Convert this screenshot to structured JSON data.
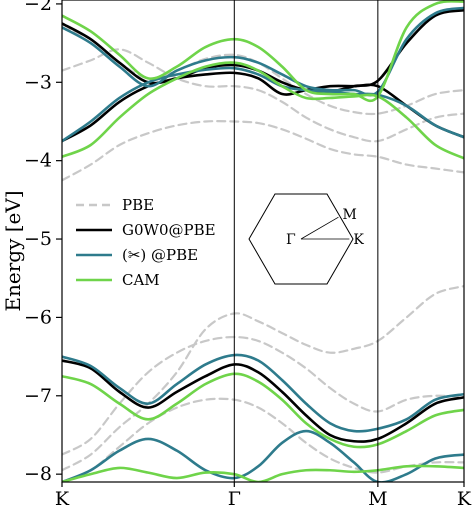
{
  "chart_data": {
    "type": "line",
    "ylabel": "Energy [eV]",
    "ylim": [
      -8.1,
      -1.95
    ],
    "yticks": [
      -2,
      -3,
      -4,
      -5,
      -6,
      -7,
      -8
    ],
    "ytick_labels": [
      "−2",
      "−3",
      "−4",
      "−5",
      "−6",
      "−7",
      "−8"
    ],
    "xlim": [
      0,
      1
    ],
    "kpoints": [
      {
        "label": "K",
        "x": 0
      },
      {
        "label": "Γ",
        "x": 0.4286
      },
      {
        "label": "M",
        "x": 0.7857
      },
      {
        "label": "K",
        "x": 1
      }
    ],
    "legend": {
      "position": "middle-left",
      "entries": [
        {
          "label": "PBE",
          "color": "#c8c8c8",
          "dashed": true
        },
        {
          "label": "G0W0@PBE",
          "color": "#000000",
          "dashed": false
        },
        {
          "label": "(✂) @PBE",
          "color": "#2e7b8c",
          "dashed": false
        },
        {
          "label": "CAM",
          "color": "#6fd44a",
          "dashed": false
        }
      ]
    },
    "inset": {
      "labels": {
        "gamma": "Γ",
        "m": "M",
        "k": "K"
      }
    },
    "x": [
      0,
      0.0714,
      0.1429,
      0.2143,
      0.2857,
      0.3571,
      0.4286,
      0.4881,
      0.5476,
      0.6071,
      0.6667,
      0.7262,
      0.7857,
      0.8571,
      0.9286,
      1
    ],
    "series": [
      {
        "legend": "PBE",
        "color": "#c8c8c8",
        "dashed": true,
        "values": [
          -2.85,
          -2.72,
          -2.58,
          -2.75,
          -2.95,
          -3.05,
          -3.05,
          -3.1,
          -3.25,
          -3.45,
          -3.6,
          -3.7,
          -3.75,
          -3.6,
          -3.45,
          -3.4
        ]
      },
      {
        "legend": "PBE",
        "color": "#c8c8c8",
        "dashed": true,
        "values": [
          -4.25,
          -4.05,
          -3.8,
          -3.65,
          -3.55,
          -3.5,
          -3.5,
          -3.52,
          -3.6,
          -3.72,
          -3.85,
          -3.92,
          -3.95,
          -4.05,
          -4.1,
          -4.15
        ]
      },
      {
        "legend": "PBE",
        "color": "#c8c8c8",
        "dashed": true,
        "values": [
          -2.3,
          -2.45,
          -2.75,
          -2.95,
          -2.85,
          -2.7,
          -2.65,
          -2.75,
          -2.95,
          -3.15,
          -3.3,
          -3.38,
          -3.4,
          -3.3,
          -3.15,
          -3.1
        ]
      },
      {
        "legend": "PBE",
        "color": "#c8c8c8",
        "dashed": true,
        "values": [
          -7.75,
          -7.55,
          -7.1,
          -6.7,
          -6.45,
          -6.3,
          -6.25,
          -6.3,
          -6.45,
          -6.65,
          -6.9,
          -7.1,
          -7.2,
          -7.05,
          -7.0,
          -7.02
        ]
      },
      {
        "legend": "PBE",
        "color": "#c8c8c8",
        "dashed": true,
        "values": [
          -7.95,
          -7.75,
          -7.4,
          -7.1,
          -6.7,
          -6.15,
          -5.95,
          -6.05,
          -6.2,
          -6.35,
          -6.45,
          -6.4,
          -6.3,
          -6.0,
          -5.7,
          -5.6
        ]
      },
      {
        "legend": "PBE",
        "color": "#c8c8c8",
        "dashed": true,
        "values": [
          -8.1,
          -7.95,
          -7.65,
          -7.35,
          -7.15,
          -7.05,
          -7.05,
          -7.15,
          -7.35,
          -7.6,
          -7.8,
          -7.92,
          -7.98,
          -7.9,
          -7.85,
          -7.85
        ]
      },
      {
        "legend": "G0W0@PBE",
        "color": "#000000",
        "dashed": false,
        "values": [
          -2.25,
          -2.45,
          -2.75,
          -3.0,
          -2.95,
          -2.82,
          -2.78,
          -2.85,
          -3.0,
          -3.1,
          -3.12,
          -3.05,
          -2.98,
          -2.5,
          -2.15,
          -2.08
        ]
      },
      {
        "legend": "G0W0@PBE",
        "color": "#000000",
        "dashed": false,
        "values": [
          -3.75,
          -3.55,
          -3.25,
          -3.05,
          -2.95,
          -2.9,
          -2.88,
          -2.95,
          -3.15,
          -3.1,
          -3.05,
          -3.05,
          -3.05,
          -3.3,
          -3.55,
          -3.7
        ]
      },
      {
        "legend": "G0W0@PBE",
        "color": "#000000",
        "dashed": false,
        "values": [
          -6.55,
          -6.65,
          -6.95,
          -7.15,
          -6.95,
          -6.75,
          -6.6,
          -6.7,
          -6.95,
          -7.25,
          -7.5,
          -7.58,
          -7.55,
          -7.35,
          -7.1,
          -7.02
        ]
      },
      {
        "legend": "(✂) @PBE",
        "color": "#2e7b8c",
        "dashed": false,
        "values": [
          -2.3,
          -2.5,
          -2.8,
          -3.05,
          -2.85,
          -2.72,
          -2.68,
          -2.75,
          -2.9,
          -3.05,
          -3.1,
          -3.1,
          -3.12,
          -2.45,
          -2.12,
          -2.05
        ]
      },
      {
        "legend": "(✂) @PBE",
        "color": "#2e7b8c",
        "dashed": false,
        "values": [
          -3.75,
          -3.5,
          -3.2,
          -3.0,
          -2.9,
          -2.84,
          -2.82,
          -2.9,
          -3.05,
          -3.1,
          -3.12,
          -3.15,
          -3.16,
          -3.3,
          -3.55,
          -3.7
        ]
      },
      {
        "legend": "(✂) @PBE",
        "color": "#2e7b8c",
        "dashed": false,
        "values": [
          -6.5,
          -6.62,
          -6.9,
          -7.1,
          -6.85,
          -6.6,
          -6.48,
          -6.55,
          -6.8,
          -7.1,
          -7.35,
          -7.45,
          -7.42,
          -7.3,
          -7.05,
          -6.98
        ]
      },
      {
        "legend": "(✂) @PBE",
        "color": "#2e7b8c",
        "dashed": false,
        "values": [
          -8.1,
          -7.95,
          -7.7,
          -7.55,
          -7.7,
          -7.95,
          -8.05,
          -7.9,
          -7.6,
          -7.45,
          -7.6,
          -7.85,
          -8.1,
          -8.0,
          -7.8,
          -7.75
        ]
      },
      {
        "legend": "CAM",
        "color": "#6fd44a",
        "dashed": false,
        "values": [
          -2.15,
          -2.35,
          -2.65,
          -2.95,
          -2.8,
          -2.55,
          -2.45,
          -2.55,
          -2.8,
          -3.1,
          -3.15,
          -3.15,
          -3.18,
          -2.3,
          -2.0,
          -1.97
        ]
      },
      {
        "legend": "CAM",
        "color": "#6fd44a",
        "dashed": false,
        "values": [
          -3.95,
          -3.8,
          -3.45,
          -3.15,
          -2.95,
          -2.8,
          -2.75,
          -2.85,
          -3.05,
          -3.2,
          -3.2,
          -3.18,
          -3.18,
          -3.45,
          -3.8,
          -3.97
        ]
      },
      {
        "legend": "CAM",
        "color": "#6fd44a",
        "dashed": false,
        "values": [
          -6.75,
          -6.85,
          -7.1,
          -7.3,
          -7.1,
          -6.85,
          -6.72,
          -6.82,
          -7.05,
          -7.35,
          -7.55,
          -7.65,
          -7.62,
          -7.45,
          -7.25,
          -7.18
        ]
      },
      {
        "legend": "CAM",
        "color": "#6fd44a",
        "dashed": false,
        "values": [
          -8.1,
          -8.0,
          -7.92,
          -7.98,
          -8.05,
          -7.98,
          -8.0,
          -8.1,
          -8.0,
          -7.95,
          -7.95,
          -7.97,
          -7.95,
          -7.9,
          -7.9,
          -7.92
        ]
      }
    ]
  }
}
